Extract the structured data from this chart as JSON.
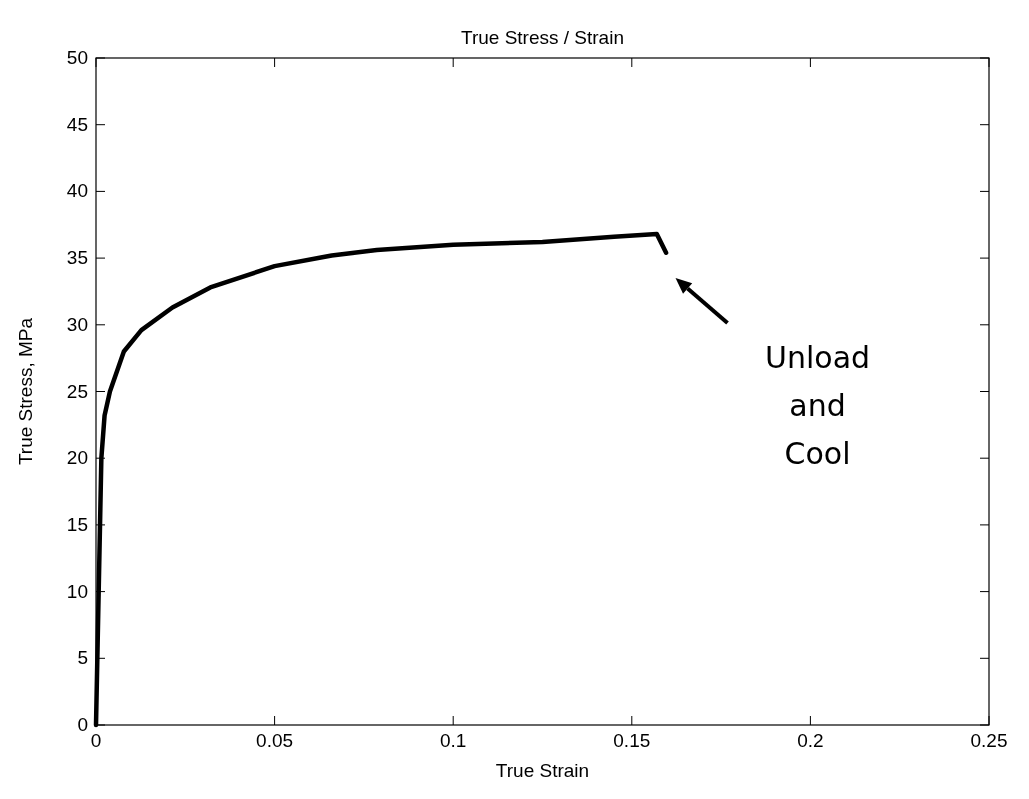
{
  "chart_data": {
    "type": "line",
    "title": "True Stress / Strain",
    "xlabel": "True Strain",
    "ylabel": "True Stress, MPa",
    "series": [
      {
        "color": "#000000",
        "x": [
          0,
          0.0015,
          0.0024,
          0.0039,
          0.0078,
          0.0127,
          0.0214,
          0.032,
          0.05,
          0.066,
          0.0786,
          0.1,
          0.125,
          0.145,
          0.157,
          0.1596
        ],
        "values": [
          0,
          20,
          23.2,
          25,
          28,
          29.6,
          31.3,
          32.8,
          34.4,
          35.2,
          35.6,
          36,
          36.2,
          36.6,
          36.8,
          35.4
        ]
      }
    ],
    "xlim": [
      0,
      0.25
    ],
    "xticks": [
      0,
      0.05,
      0.1,
      0.15,
      0.2,
      0.25
    ],
    "ylim": [
      0,
      50
    ],
    "yticks": [
      0,
      5,
      10,
      15,
      20,
      25,
      30,
      35,
      40,
      45,
      50
    ],
    "grid": false,
    "line_style": "solid",
    "marker": "none",
    "annotations": [
      "Unload and Cool"
    ]
  }
}
